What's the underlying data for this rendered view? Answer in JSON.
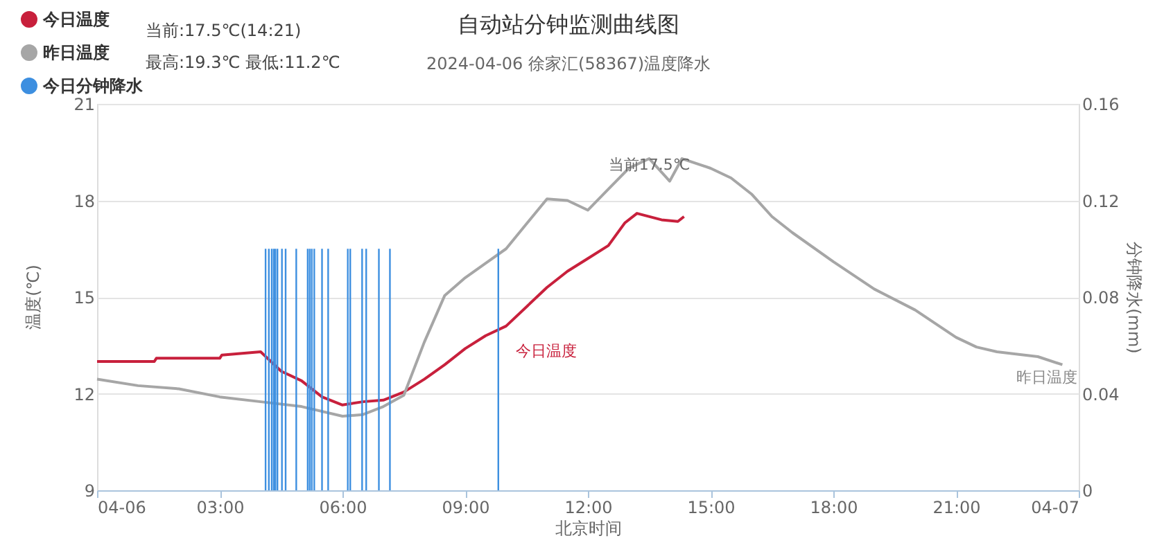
{
  "chart_data": {
    "type": "line",
    "title": "自动站分钟监测曲线图",
    "subtitle": "2024-04-06 徐家汇(58367)温度降水",
    "xlabel": "北京时间",
    "ylabel": "温度(℃)",
    "y2label": "分钟降水(mm)",
    "xlim": [
      0,
      24
    ],
    "xticks": [
      {
        "value": 0,
        "label": "04-06"
      },
      {
        "value": 3,
        "label": "03:00"
      },
      {
        "value": 6,
        "label": "06:00"
      },
      {
        "value": 9,
        "label": "09:00"
      },
      {
        "value": 12,
        "label": "12:00"
      },
      {
        "value": 15,
        "label": "15:00"
      },
      {
        "value": 18,
        "label": "18:00"
      },
      {
        "value": 21,
        "label": "21:00"
      },
      {
        "value": 24,
        "label": "04-07"
      }
    ],
    "ylim": [
      9,
      21
    ],
    "yticks": [
      9,
      12,
      15,
      18,
      21
    ],
    "y2lim": [
      0,
      0.16
    ],
    "y2ticks": [
      {
        "value": 0,
        "label": "0"
      },
      0.04,
      0.08,
      0.12,
      0.16
    ],
    "grid": "y",
    "legend": "top left",
    "marker": "none",
    "line_style": "solid",
    "series": [
      {
        "name": "今日温度",
        "color": "#c8203c",
        "x": [
          0,
          1.4,
          1.45,
          3,
          3.05,
          4,
          4.5,
          5,
          5.5,
          6,
          6.5,
          7,
          7.5,
          8,
          8.5,
          9,
          9.5,
          10,
          11,
          11.5,
          12,
          12.5,
          12.9,
          13.2,
          13.8,
          14.2,
          14.35
        ],
        "values": [
          13.0,
          13.0,
          13.1,
          13.1,
          13.2,
          13.3,
          12.7,
          12.4,
          11.9,
          11.65,
          11.75,
          11.8,
          12.05,
          12.45,
          12.9,
          13.4,
          13.8,
          14.1,
          15.3,
          15.8,
          16.2,
          16.6,
          17.3,
          17.6,
          17.4,
          17.35,
          17.5
        ]
      },
      {
        "name": "昨日温度",
        "color": "#a6a6a6",
        "x": [
          0,
          1,
          2,
          3,
          4,
          5,
          6,
          6.5,
          7,
          7.5,
          8,
          8.5,
          9,
          9.5,
          10,
          11,
          11.5,
          12,
          12.5,
          13,
          13.5,
          14,
          14.3,
          15,
          15.5,
          16,
          16.5,
          17,
          18,
          19,
          20,
          21,
          21.5,
          22,
          23,
          23.6
        ],
        "values": [
          12.45,
          12.25,
          12.15,
          11.9,
          11.75,
          11.6,
          11.3,
          11.35,
          11.6,
          11.95,
          13.6,
          15.05,
          15.6,
          16.05,
          16.5,
          18.05,
          18.0,
          17.7,
          18.35,
          19.0,
          19.3,
          18.6,
          19.3,
          19.0,
          18.7,
          18.2,
          17.5,
          17.0,
          16.1,
          15.25,
          14.6,
          13.75,
          13.45,
          13.3,
          13.15,
          12.9
        ]
      },
      {
        "name": "今日分钟降水",
        "color": "#3d8fe0",
        "type": "bar",
        "axis": "y2",
        "x": [
          4.12,
          4.2,
          4.27,
          4.32,
          4.36,
          4.41,
          4.52,
          4.61,
          4.87,
          5.15,
          5.2,
          5.25,
          5.31,
          5.5,
          5.65,
          6.13,
          6.19,
          6.48,
          6.58,
          6.89,
          7.16,
          9.81
        ],
        "values": [
          0.1,
          0.1,
          0.1,
          0.1,
          0.1,
          0.1,
          0.1,
          0.1,
          0.1,
          0.1,
          0.1,
          0.1,
          0.1,
          0.1,
          0.1,
          0.1,
          0.1,
          0.1,
          0.1,
          0.1,
          0.1,
          0.1
        ]
      }
    ],
    "annotations": [
      "当前:17.5℃(14:21)",
      "最高:19.3℃ 最低:11.2℃",
      {
        "text": "当前17.5℃",
        "x": 14.35,
        "y": 17.5
      },
      "今日温度",
      "昨日温度"
    ]
  }
}
